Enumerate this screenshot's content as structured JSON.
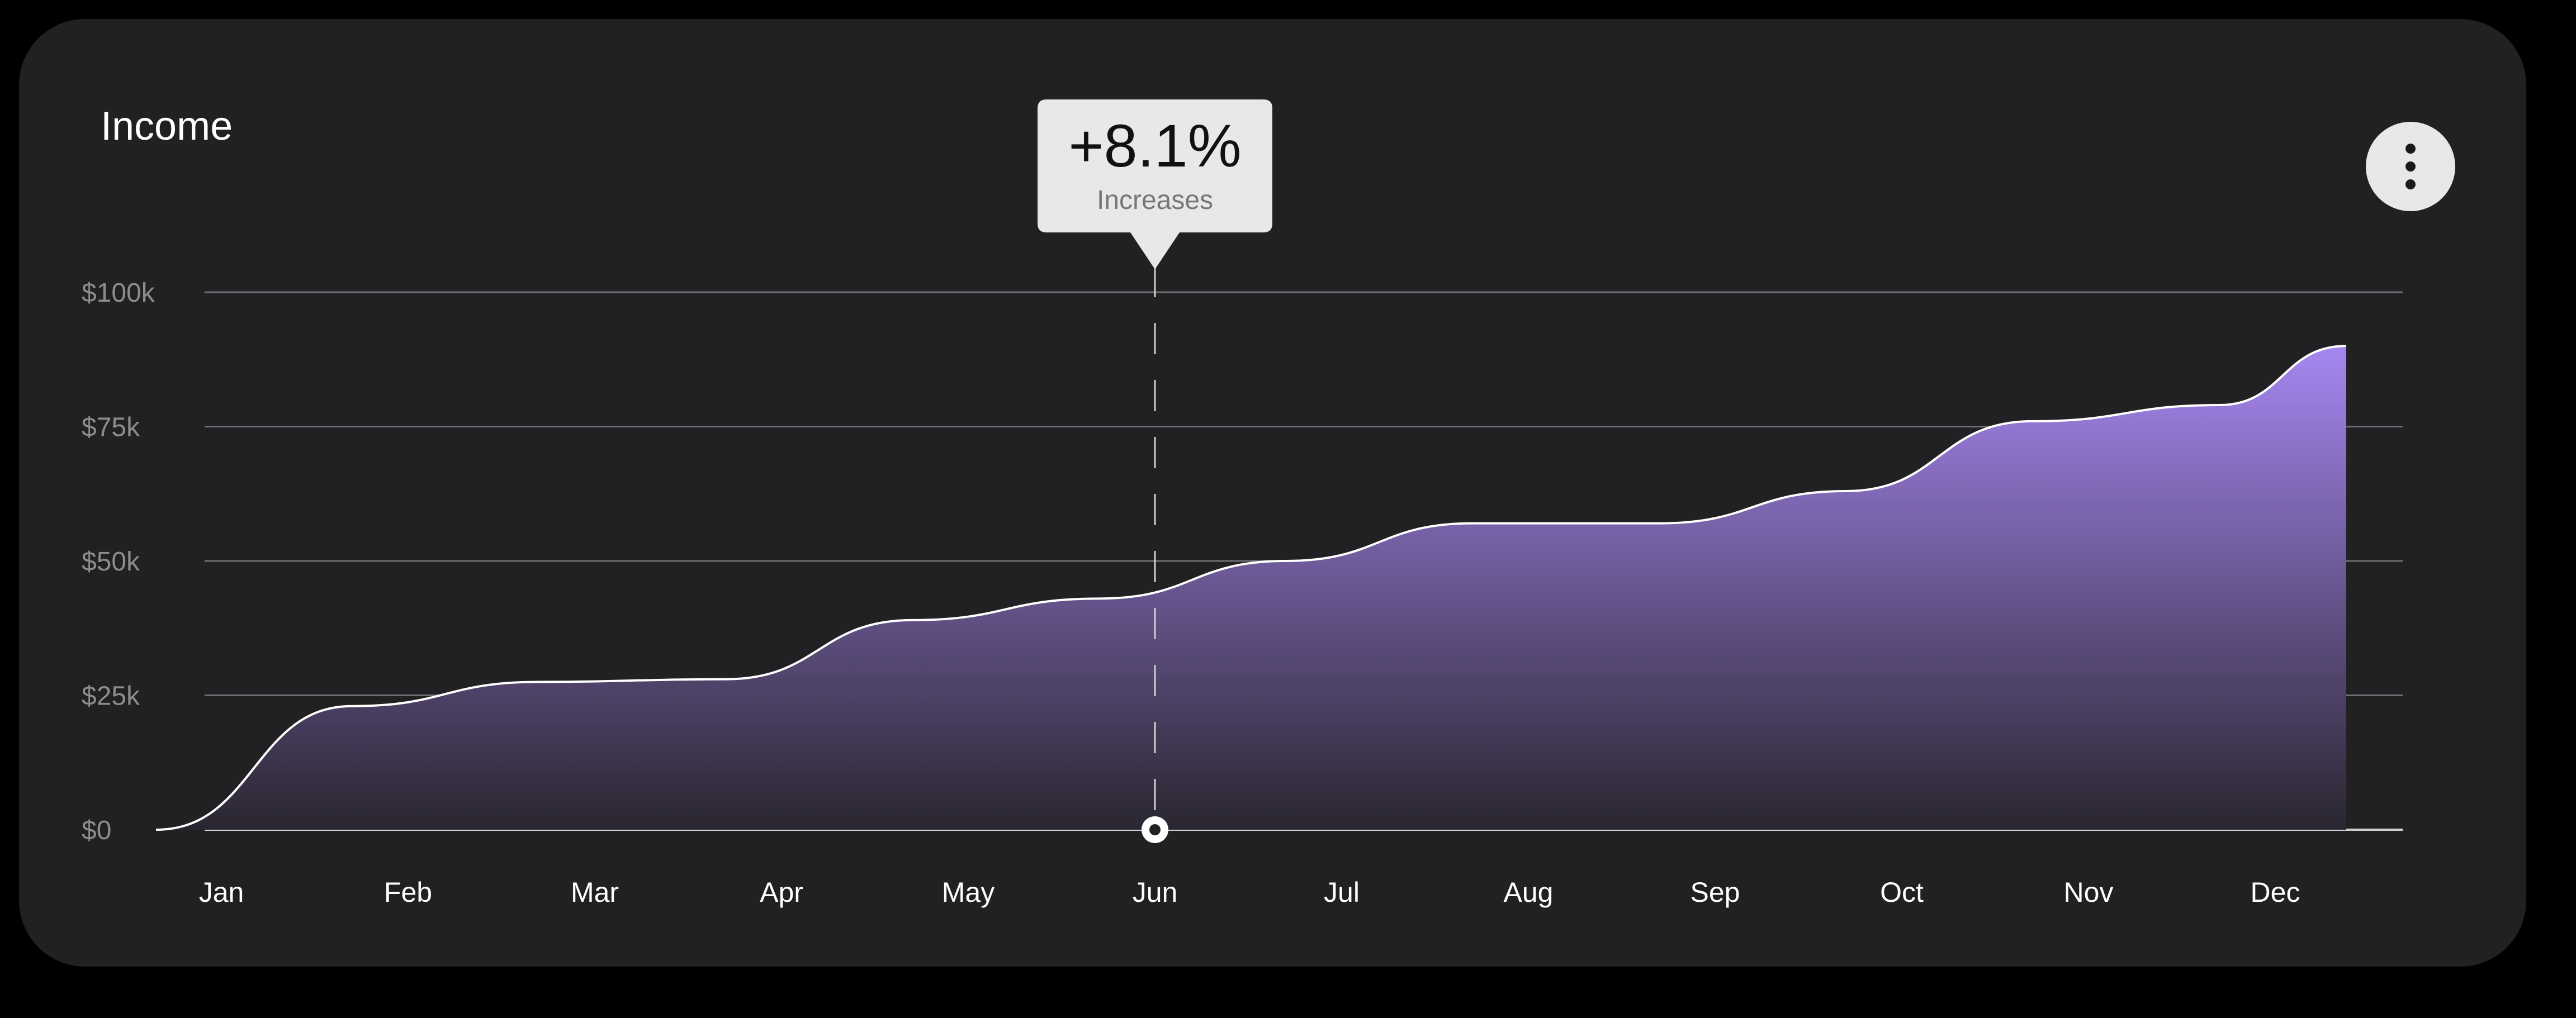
{
  "card": {
    "title": "Income",
    "menu_icon": "more-vertical-icon"
  },
  "colors": {
    "card_bg": "#212123",
    "grid": "#6e6e72",
    "line": "#ffffff",
    "fill_top": "#a686f0",
    "fill_bottom": "#2a2630",
    "tooltip_bg": "#e8e8e8"
  },
  "chart_data": {
    "type": "area",
    "title": "Income",
    "xlabel": "",
    "ylabel": "",
    "categories": [
      "Jan",
      "Feb",
      "Mar",
      "Apr",
      "May",
      "Jun",
      "Jul",
      "Aug",
      "Sep",
      "Oct",
      "Nov",
      "Dec"
    ],
    "ylim": [
      0,
      100000
    ],
    "y_ticks": [
      {
        "value": 0,
        "label": "$0"
      },
      {
        "value": 25000,
        "label": "$25k"
      },
      {
        "value": 50000,
        "label": "$50k"
      },
      {
        "value": 75000,
        "label": "$75k"
      },
      {
        "value": 100000,
        "label": "$100k"
      }
    ],
    "grid": true,
    "series": [
      {
        "name": "Income",
        "x": [
          -0.35,
          0.7,
          1.7,
          2.7,
          3.7,
          4.7,
          5.7,
          6.7,
          7.7,
          8.7,
          9.7,
          10.7,
          11.38
        ],
        "values": [
          0,
          23000,
          27500,
          28000,
          39000,
          43000,
          50000,
          57000,
          57000,
          63000,
          76000,
          79000,
          90000
        ]
      }
    ],
    "highlight": {
      "category": "Jun",
      "value_label": "+8.1%",
      "sub_label": "Increases"
    }
  }
}
